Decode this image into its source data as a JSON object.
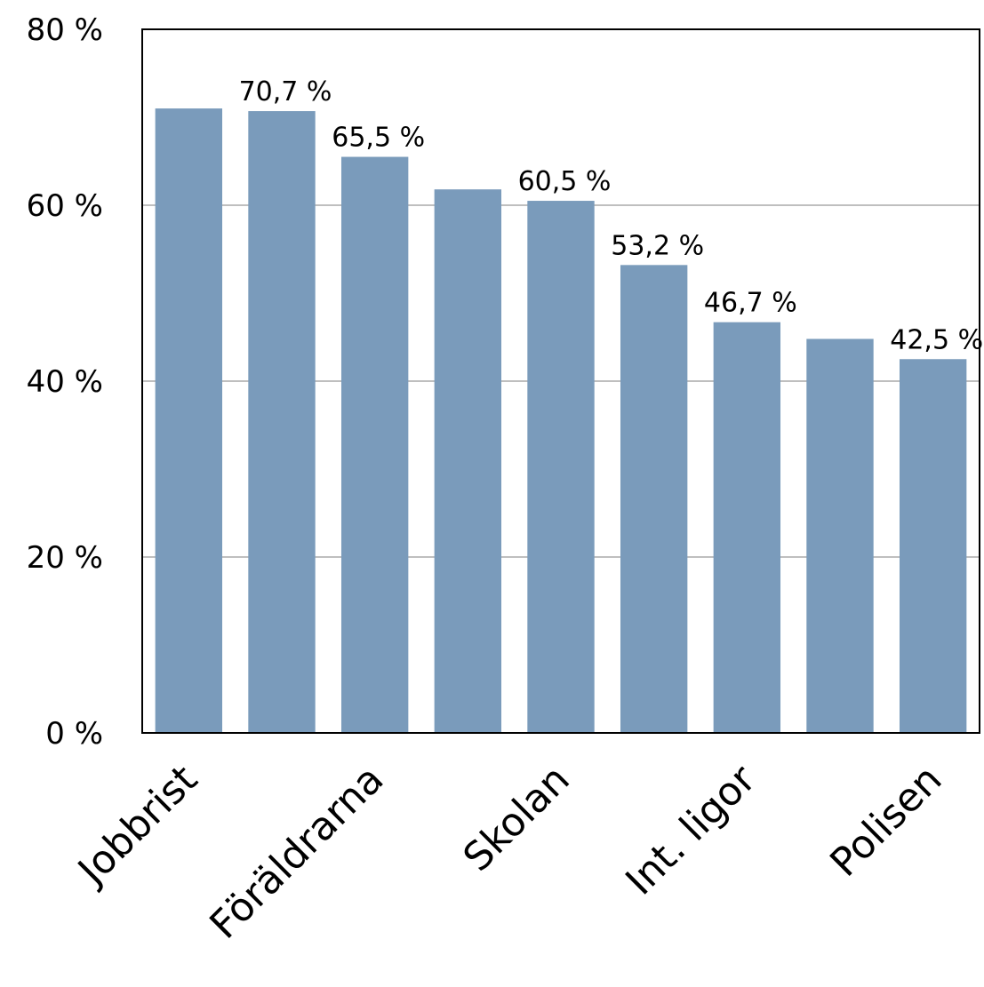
{
  "chart_data": {
    "type": "bar",
    "categories": [
      "Jobbrist",
      "",
      "Föräldrarna",
      "",
      "Skolan",
      "",
      "Int. ligor",
      "",
      "Polisen"
    ],
    "values": [
      71.0,
      70.7,
      65.5,
      61.8,
      60.5,
      53.2,
      46.7,
      44.8,
      42.5
    ],
    "data_labels": [
      "",
      "70,7 %",
      "65,5 %",
      "",
      "60,5 %",
      "53,2 %",
      "46,7 %",
      "",
      "42,5 %"
    ],
    "ylim": [
      0,
      80
    ],
    "yticks": [
      0,
      20,
      40,
      60,
      80
    ],
    "ytick_labels": [
      "0 %",
      "20 %",
      "40 %",
      "60 %",
      "80 %"
    ],
    "title": "",
    "xlabel": "",
    "ylabel": "",
    "grid": true,
    "bar_color": "#7a9bbb",
    "grid_color": "#bfbfbf",
    "axis_color": "#000000"
  }
}
